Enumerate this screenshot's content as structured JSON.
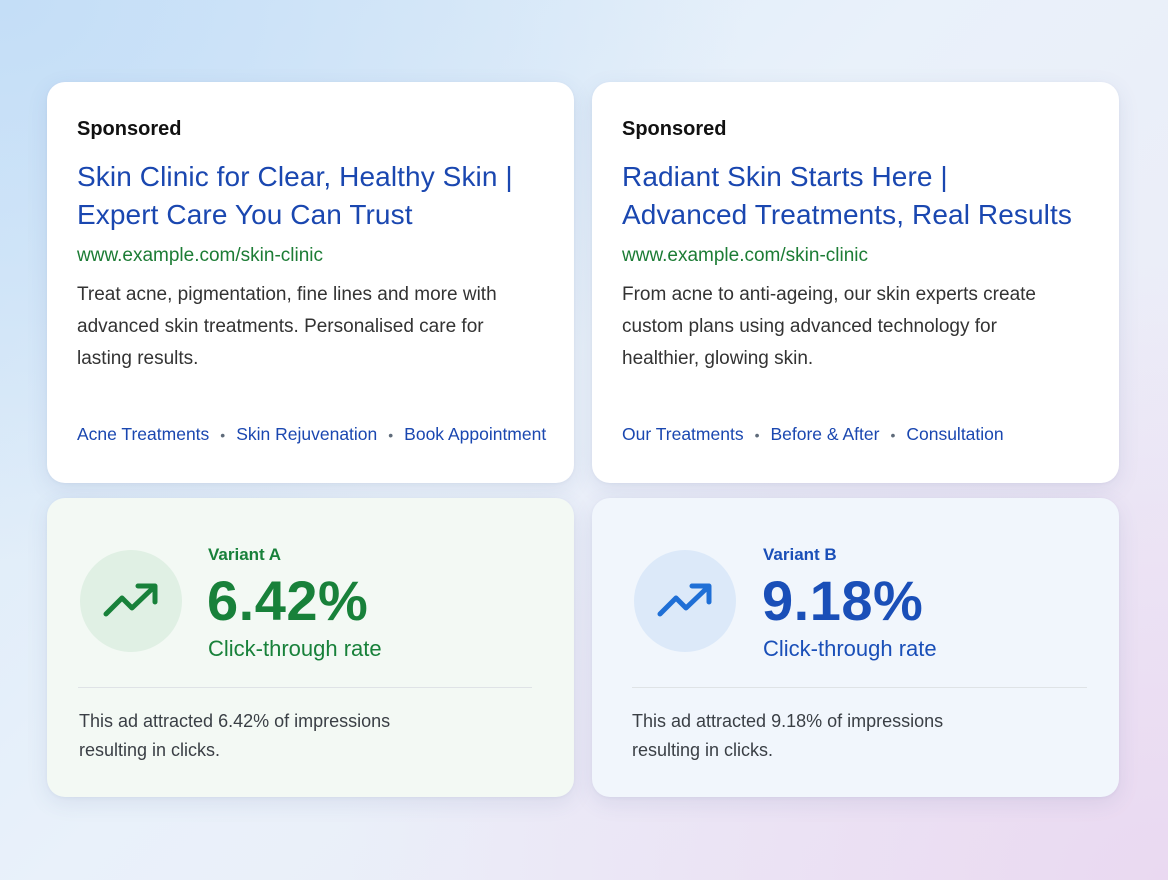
{
  "ads": [
    {
      "sponsored_label": "Sponsored",
      "headline_line1": "Skin Clinic for Clear, Healthy Skin |",
      "headline_line2": "Expert Care You Can Trust",
      "display_url": "www.example.com/skin-clinic",
      "description": "Treat acne, pigmentation, fine lines and more with advanced skin treatments. Personalised care for lasting results.",
      "sitelinks": [
        "Acne Treatments",
        "Skin Rejuvenation",
        "Book Appointment"
      ]
    },
    {
      "sponsored_label": "Sponsored",
      "headline_line1": "Radiant Skin Starts Here |",
      "headline_line2": "Advanced Treatments, Real Results",
      "display_url": "www.example.com/skin-clinic",
      "description": "From acne to anti-ageing, our skin experts create custom plans using advanced technology for healthier, glowing skin.",
      "sitelinks": [
        "Our Treatments",
        "Before & After",
        "Consultation"
      ]
    }
  ],
  "results": [
    {
      "variant": "Variant A",
      "value": "6.42%",
      "metric": "Click-through rate",
      "note": "This ad attracted 6.42% of impressions resulting in clicks.",
      "icon": "trending-up-icon",
      "accent_color": "#18813a",
      "icon_bg_color": "#e0f0e4"
    },
    {
      "variant": "Variant B",
      "value": "9.18%",
      "metric": "Click-through rate",
      "note": "This ad attracted 9.18% of impressions resulting in clicks.",
      "icon": "trending-up-icon",
      "accent_color": "#1a4fb8",
      "icon_bg_color": "#dce9f9"
    }
  ],
  "colors": {
    "link_blue": "#1a47b0",
    "url_green": "#1c7c35",
    "body_text": "#333333"
  }
}
